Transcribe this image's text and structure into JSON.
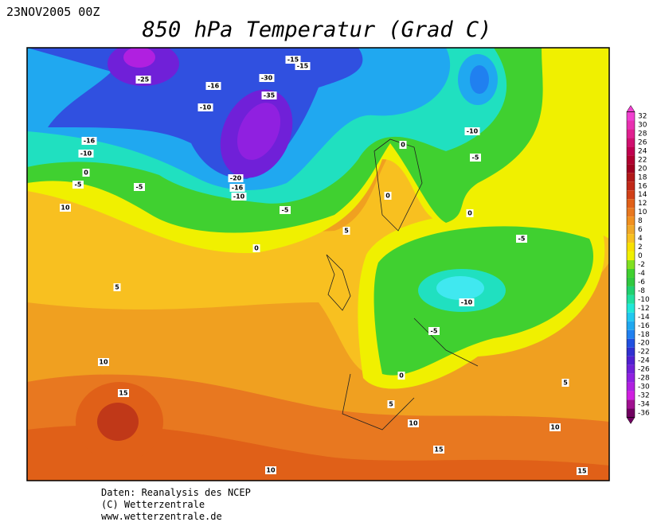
{
  "header": {
    "date": "23NOV2005 00Z",
    "title": "850 hPa Temperatur (Grad C)"
  },
  "map": {
    "contour_labels": [
      "-25",
      "-15",
      "-15",
      "-30",
      "-16",
      "-35",
      "-10",
      "-16",
      "-10",
      "-10",
      "-5",
      "0",
      "0",
      "-5",
      "-5",
      "-20",
      "-16",
      "-10",
      "-5",
      "0",
      "0",
      "10",
      "5",
      "0",
      "-5",
      "5",
      "-10",
      "-5",
      "0",
      "10",
      "15",
      "5",
      "5",
      "10",
      "10",
      "15",
      "10",
      "15"
    ]
  },
  "colorbar": {
    "ticks": [
      32,
      30,
      28,
      26,
      24,
      22,
      20,
      18,
      16,
      14,
      12,
      10,
      8,
      6,
      4,
      2,
      0,
      -2,
      -4,
      -6,
      -8,
      -10,
      -12,
      -14,
      -16,
      -18,
      -20,
      -22,
      -24,
      -26,
      -28,
      -30,
      -32,
      -34,
      -36
    ],
    "colors": [
      "#f040d0",
      "#e830b0",
      "#e02090",
      "#d01070",
      "#c00050",
      "#b00030",
      "#a00020",
      "#b01818",
      "#c02818",
      "#d04018",
      "#e06018",
      "#e87820",
      "#f09020",
      "#f0a828",
      "#f8c020",
      "#f8e000",
      "#f0f000",
      "#80e020",
      "#40d030",
      "#30c840",
      "#20d070",
      "#20e0a0",
      "#20e8d8",
      "#20c8f0",
      "#20a8f0",
      "#2080f0",
      "#2050e0",
      "#3030d0",
      "#5020d0",
      "#7020d8",
      "#9020e0",
      "#b020e0",
      "#d020e0",
      "#a01090",
      "#700060"
    ]
  },
  "footer": {
    "lines": [
      "Daten: Reanalysis des NCEP",
      "(C) Wetterzentrale",
      "www.wetterzentrale.de"
    ]
  }
}
